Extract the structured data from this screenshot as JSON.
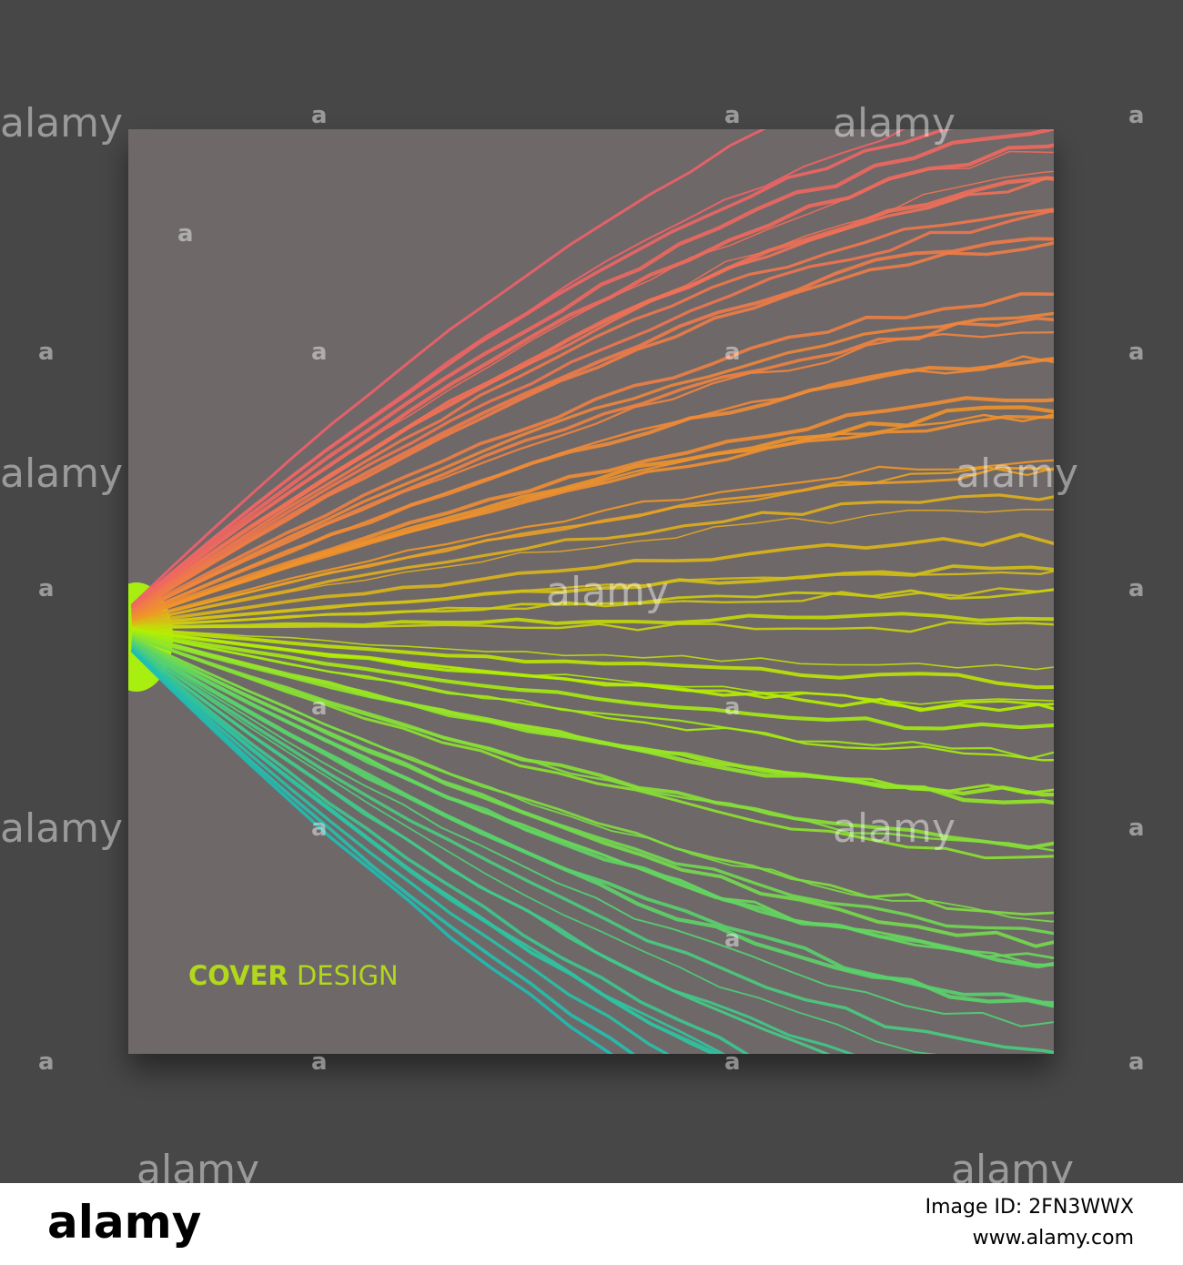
{
  "cover": {
    "title_bold": "COVER",
    "title_light": "DESIGN"
  },
  "watermark": {
    "text": "alamy",
    "mark": "a"
  },
  "footer": {
    "brand": "alamy",
    "image_id": "Image ID: 2FN3WWX",
    "url": "www.alamy.com"
  }
}
